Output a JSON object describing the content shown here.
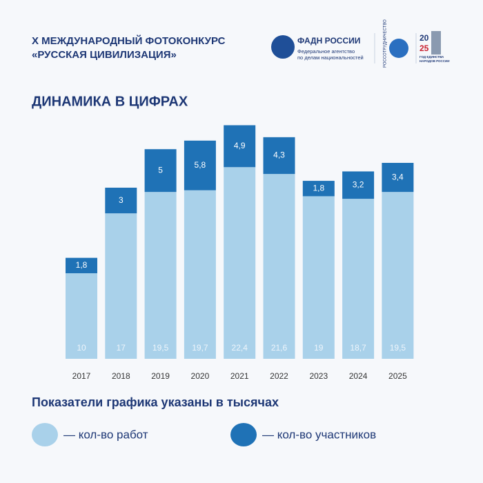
{
  "header": {
    "title_lines": [
      "X МЕЖДУНАРОДНЫЙ ФОТОКОНКУРС",
      "«РУССКАЯ ЦИВИЛИЗАЦИЯ»"
    ],
    "logo1": {
      "name": "ФАДН РОССИИ",
      "lines": [
        "Федеральное агентство",
        "по делам национальностей"
      ]
    },
    "logo2": "РОССОТРУДНИЧЕСТВО",
    "logo3": {
      "year_top": "20",
      "year_bottom": "25",
      "lines": [
        "ГОД ЕДИНСТВА",
        "НАРОДОВ РОССИИ"
      ]
    }
  },
  "chart_data": {
    "type": "bar",
    "stacked": true,
    "title": "ДИНАМИКА В ЦИФРАХ",
    "note": "Показатели графика указаны в тысячах",
    "categories": [
      "2017",
      "2018",
      "2019",
      "2020",
      "2021",
      "2022",
      "2023",
      "2024",
      "2025"
    ],
    "series": [
      {
        "name": "— кол-во работ",
        "color": "#a9d1ea",
        "values": [
          10,
          17,
          19.5,
          19.7,
          22.4,
          21.6,
          19,
          18.7,
          19.5
        ],
        "value_labels": [
          "10",
          "17",
          "19,5",
          "19,7",
          "22,4",
          "21,6",
          "19",
          "18,7",
          "19,5"
        ]
      },
      {
        "name": "— кол-во участников",
        "color": "#1f72b6",
        "values": [
          1.8,
          3,
          5,
          5.8,
          4.9,
          4.3,
          1.8,
          3.2,
          3.4
        ],
        "value_labels": [
          "1,8",
          "3",
          "5",
          "5,8",
          "4,9",
          "4,3",
          "1,8",
          "3,2",
          "3,4"
        ]
      }
    ]
  }
}
